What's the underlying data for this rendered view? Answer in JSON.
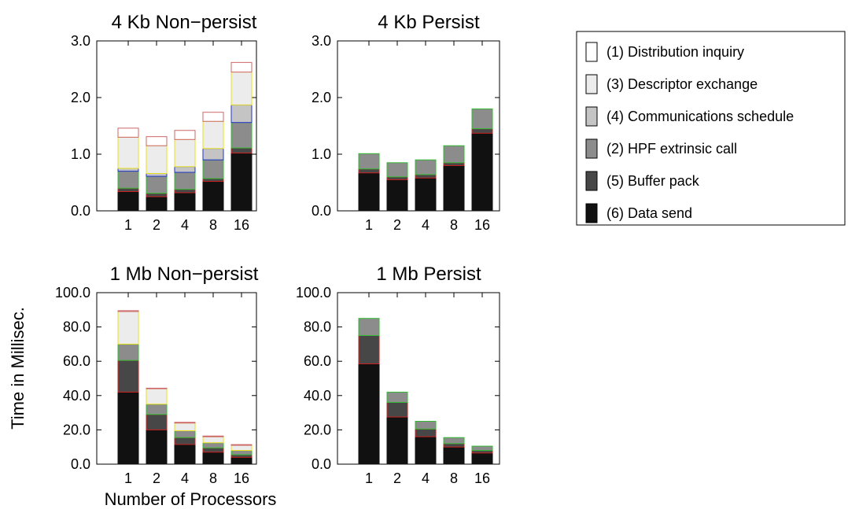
{
  "y_axis_label": "Time in Millisec.",
  "x_axis_label": "Number of Processors",
  "legend": [
    {
      "label": "(1)  Distribution inquiry",
      "fill": "#ffffff"
    },
    {
      "label": "(3)  Descriptor exchange",
      "fill": "#ececec"
    },
    {
      "label": "(4)  Communications schedule",
      "fill": "#c4c4c4"
    },
    {
      "label": "(2)  HPF extrinsic call",
      "fill": "#8c8c8c"
    },
    {
      "label": "(5)  Buffer pack",
      "fill": "#474747"
    },
    {
      "label": "(6)  Data send",
      "fill": "#111111"
    }
  ],
  "chart_data": [
    {
      "type": "bar",
      "stacked": true,
      "title": "4 Kb Non−persist",
      "categories": [
        "1",
        "2",
        "4",
        "8",
        "16"
      ],
      "ylim": [
        0,
        3.0
      ],
      "yticks": [
        "0.0",
        "1.0",
        "2.0",
        "3.0"
      ],
      "ytick_values": [
        0,
        1,
        2,
        3
      ],
      "series": [
        {
          "name": "(6)  Data send",
          "values": [
            0.34,
            0.25,
            0.32,
            0.52,
            1.02
          ],
          "fill": "#111111",
          "stroke": "#111111"
        },
        {
          "name": "(5)  Buffer pack",
          "values": [
            0.06,
            0.06,
            0.06,
            0.05,
            0.09
          ],
          "fill": "#474747",
          "stroke": "#cc2222"
        },
        {
          "name": "(2)  HPF extrinsic call",
          "values": [
            0.3,
            0.3,
            0.3,
            0.33,
            0.45
          ],
          "fill": "#8c8c8c",
          "stroke": "#33bb33"
        },
        {
          "name": "(4)  Communications schedule",
          "values": [
            0.05,
            0.05,
            0.1,
            0.2,
            0.31
          ],
          "fill": "#c4c4c4",
          "stroke": "#2233cc"
        },
        {
          "name": "(3)  Descriptor exchange",
          "values": [
            0.55,
            0.49,
            0.48,
            0.48,
            0.58
          ],
          "fill": "#ececec",
          "stroke": "#e8e020"
        },
        {
          "name": "(1)  Distribution inquiry",
          "values": [
            0.16,
            0.16,
            0.16,
            0.16,
            0.17
          ],
          "fill": "#ffffff",
          "stroke": "#cc6666"
        }
      ]
    },
    {
      "type": "bar",
      "stacked": true,
      "title": "4 Kb Persist",
      "categories": [
        "1",
        "2",
        "4",
        "8",
        "16"
      ],
      "ylim": [
        0,
        3.0
      ],
      "yticks": [
        "0.0",
        "1.0",
        "2.0",
        "3.0"
      ],
      "ytick_values": [
        0,
        1,
        2,
        3
      ],
      "series": [
        {
          "name": "(6)  Data send",
          "values": [
            0.67,
            0.55,
            0.58,
            0.8,
            1.37
          ],
          "fill": "#111111",
          "stroke": "#111111"
        },
        {
          "name": "(5)  Buffer pack",
          "values": [
            0.07,
            0.05,
            0.06,
            0.05,
            0.08
          ],
          "fill": "#474747",
          "stroke": "#cc2222"
        },
        {
          "name": "(2)  HPF extrinsic call",
          "values": [
            0.27,
            0.25,
            0.26,
            0.3,
            0.35
          ],
          "fill": "#8c8c8c",
          "stroke": "#33bb33"
        }
      ]
    },
    {
      "type": "bar",
      "stacked": true,
      "title": "1 Mb Non−persist",
      "categories": [
        "1",
        "2",
        "4",
        "8",
        "16"
      ],
      "ylim": [
        0,
        100.0
      ],
      "yticks": [
        "0.0",
        "20.0",
        "40.0",
        "60.0",
        "80.0",
        "100.0"
      ],
      "ytick_values": [
        0,
        20,
        40,
        60,
        80,
        100
      ],
      "series": [
        {
          "name": "(6)  Data send",
          "values": [
            42,
            20,
            11.5,
            7,
            4
          ],
          "fill": "#111111",
          "stroke": "#111111"
        },
        {
          "name": "(5)  Buffer pack",
          "values": [
            18.5,
            9,
            4,
            2.5,
            1.5
          ],
          "fill": "#474747",
          "stroke": "#cc2222"
        },
        {
          "name": "(2)  HPF extrinsic call",
          "values": [
            9.5,
            6,
            4,
            3,
            2.5
          ],
          "fill": "#8c8c8c",
          "stroke": "#33bb33"
        },
        {
          "name": "(4)  Communications schedule",
          "values": [
            0,
            0,
            0,
            0,
            0
          ],
          "fill": "#c4c4c4",
          "stroke": "#2233cc"
        },
        {
          "name": "(3)  Descriptor exchange",
          "values": [
            19,
            9,
            4.5,
            3.5,
            3
          ],
          "fill": "#ececec",
          "stroke": "#e8e020"
        },
        {
          "name": "(1)  Distribution inquiry",
          "values": [
            0.5,
            0.3,
            0.4,
            0.4,
            0.4
          ],
          "fill": "#ffffff",
          "stroke": "#cc6666"
        }
      ]
    },
    {
      "type": "bar",
      "stacked": true,
      "title": "1 Mb Persist",
      "categories": [
        "1",
        "2",
        "4",
        "8",
        "16"
      ],
      "ylim": [
        0,
        100.0
      ],
      "yticks": [
        "0.0",
        "20.0",
        "40.0",
        "60.0",
        "80.0",
        "100.0"
      ],
      "ytick_values": [
        0,
        20,
        40,
        60,
        80,
        100
      ],
      "series": [
        {
          "name": "(6)  Data send",
          "values": [
            58.5,
            27.5,
            16,
            10,
            6.5
          ],
          "fill": "#111111",
          "stroke": "#111111"
        },
        {
          "name": "(5)  Buffer pack",
          "values": [
            16.5,
            8.5,
            4.5,
            2,
            1.5
          ],
          "fill": "#474747",
          "stroke": "#cc2222"
        },
        {
          "name": "(2)  HPF extrinsic call",
          "values": [
            10,
            6,
            4.5,
            3.5,
            2.5
          ],
          "fill": "#8c8c8c",
          "stroke": "#33bb33"
        }
      ]
    }
  ]
}
